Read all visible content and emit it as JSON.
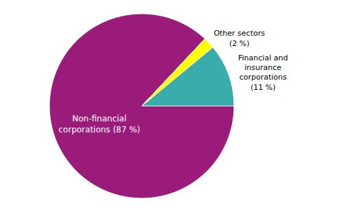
{
  "chart_data": {
    "type": "pie",
    "categories": [
      "Non-financial\ncorporations (87 %)",
      "Financial and\ninsurance\ncorporations\n(11 %)",
      "Other sectors\n(2 %)"
    ],
    "values": [
      87,
      11,
      2
    ],
    "colors": [
      "#9B1B7B",
      "#3AACAC",
      "#FFFF00"
    ]
  }
}
